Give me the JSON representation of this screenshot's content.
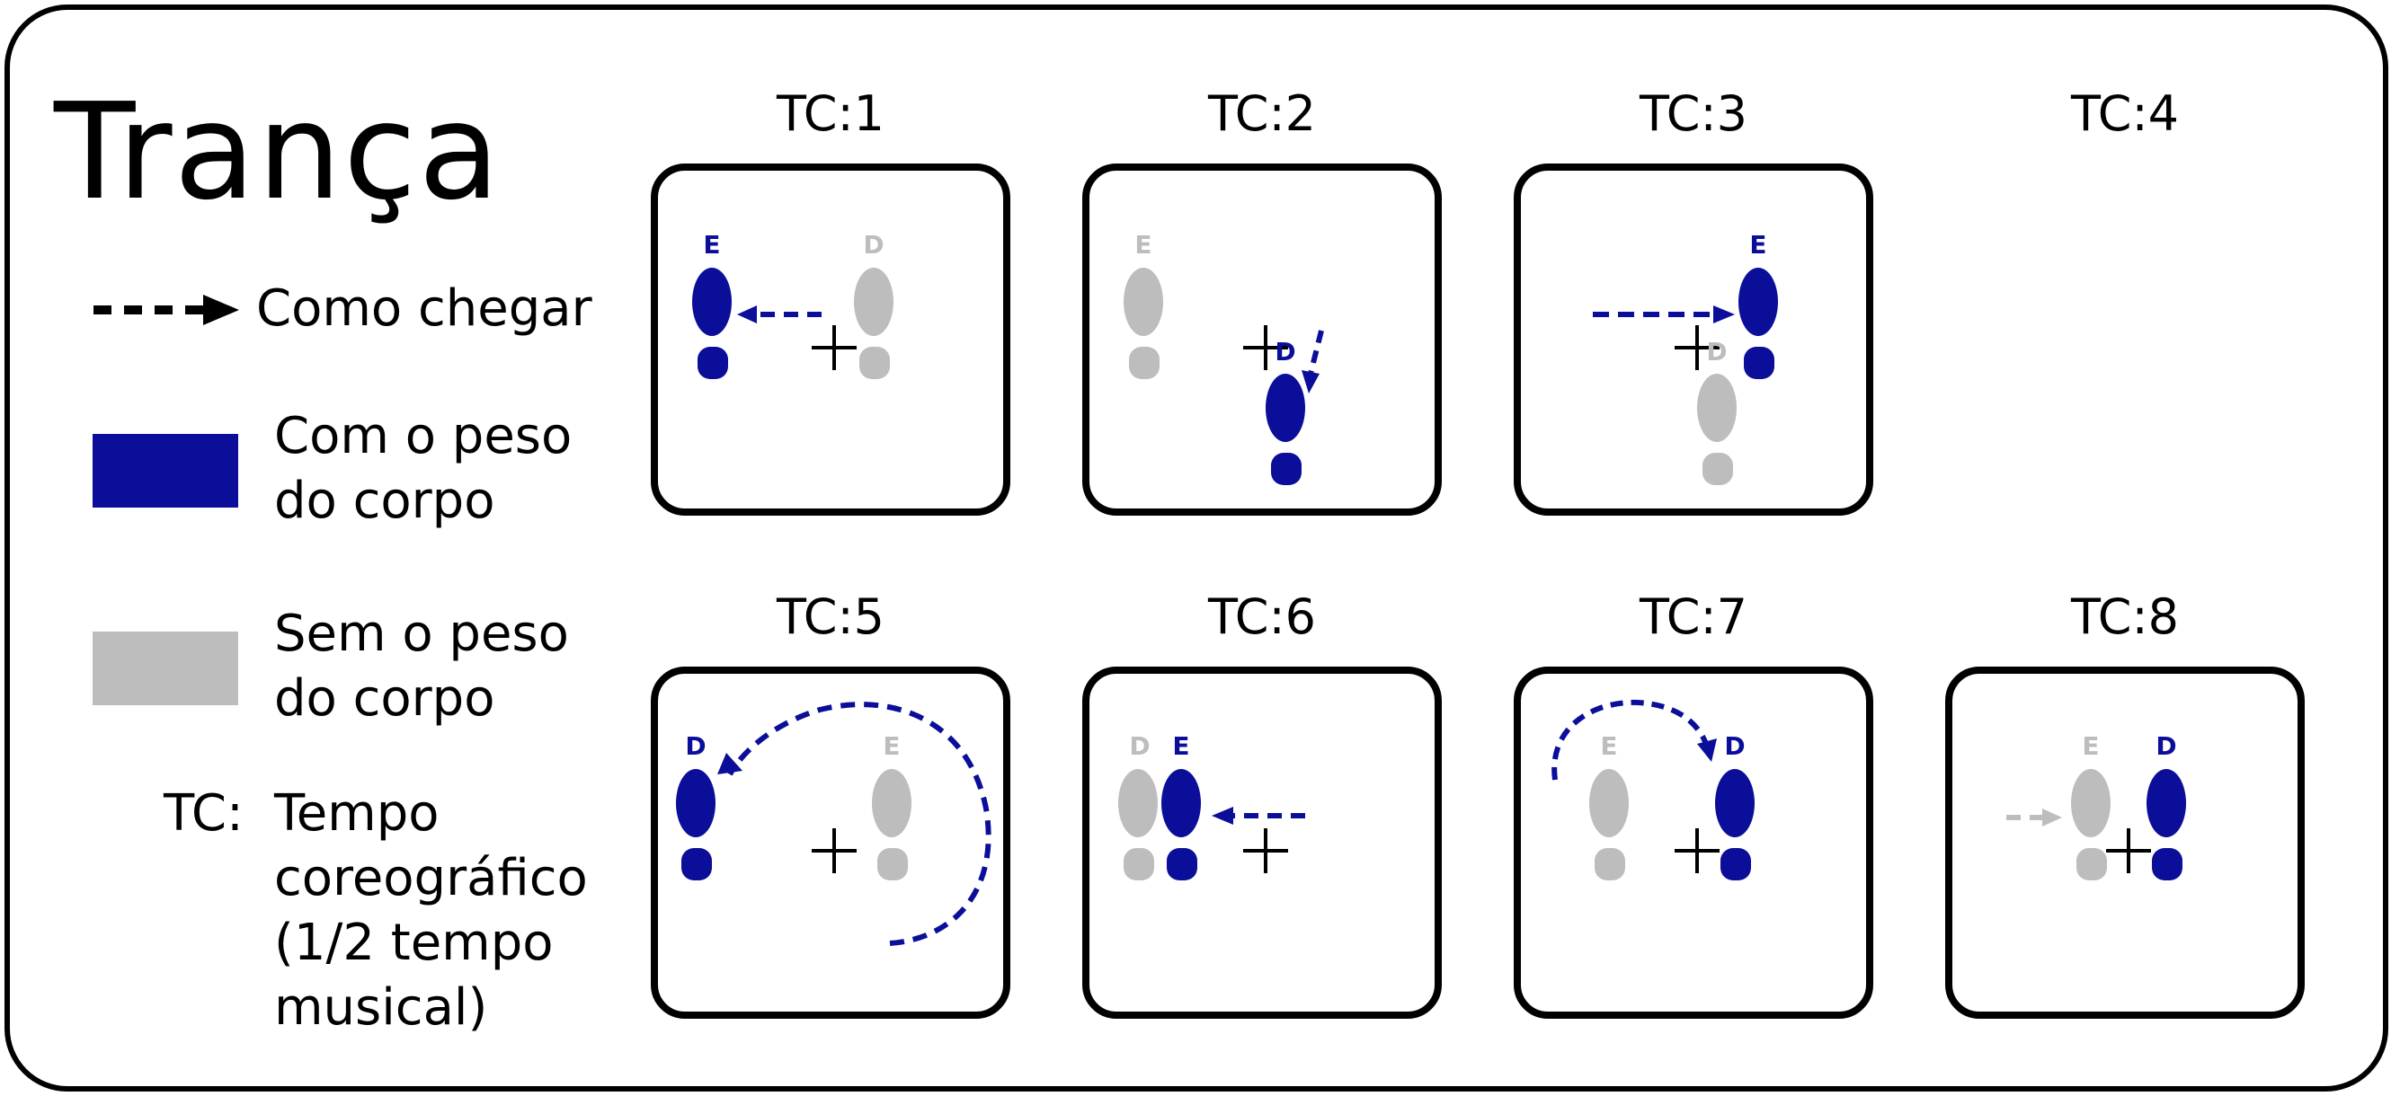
{
  "title": "Trança",
  "colors": {
    "weight": "#0B0E99",
    "no_weight": "#BDBDBD",
    "ink": "#000000"
  },
  "legend": {
    "arrow_label": "Como chegar",
    "weight_label": "Com o peso\ndo corpo",
    "no_weight_label": "Sem o peso\ndo corpo",
    "tc_abbr": "TC:",
    "tc_desc": "Tempo\ncoreográfico\n(1/2 tempo\nmusical)"
  },
  "foot_letters": {
    "left": "E",
    "right": "D"
  },
  "steps": [
    {
      "label": "TC:1",
      "panel": true,
      "left": {
        "pos": "left",
        "weight": true,
        "letter_state": "weight"
      },
      "right": {
        "pos": "center",
        "weight": false,
        "letter_state": "no_weight"
      },
      "arrow": "center-to-left"
    },
    {
      "label": "TC:2",
      "panel": true,
      "left": {
        "pos": "left",
        "weight": false,
        "letter_state": "no_weight"
      },
      "right": {
        "pos": "center-low",
        "weight": true,
        "letter_state": "weight"
      },
      "arrow": "center-to-down"
    },
    {
      "label": "TC:3",
      "panel": true,
      "left": {
        "pos": "right",
        "weight": true,
        "letter_state": "weight"
      },
      "right": {
        "pos": "center-low",
        "weight": false,
        "letter_state": "no_weight"
      },
      "arrow": "left-to-right"
    },
    {
      "label": "TC:4",
      "panel": false
    },
    {
      "label": "TC:5",
      "panel": true,
      "left": {
        "pos": "center",
        "weight": false,
        "letter_state": "no_weight"
      },
      "right": {
        "pos": "left",
        "weight": true,
        "letter_state": "weight"
      },
      "arrow": "arc-around"
    },
    {
      "label": "TC:6",
      "panel": true,
      "left": {
        "pos": "left-inner",
        "weight": true,
        "letter_state": "weight"
      },
      "right": {
        "pos": "left",
        "weight": false,
        "letter_state": "no_weight"
      },
      "arrow": "center-to-left-short"
    },
    {
      "label": "TC:7",
      "panel": true,
      "left": {
        "pos": "left-mid",
        "weight": false,
        "letter_state": "no_weight"
      },
      "right": {
        "pos": "right",
        "weight": true,
        "letter_state": "weight"
      },
      "arrow": "arc-over"
    },
    {
      "label": "TC:8",
      "panel": true,
      "left": {
        "pos": "center",
        "weight": false,
        "letter_state": "no_weight"
      },
      "right": {
        "pos": "right",
        "weight": true,
        "letter_state": "weight"
      },
      "arrow": "gray-left-to-center"
    }
  ]
}
